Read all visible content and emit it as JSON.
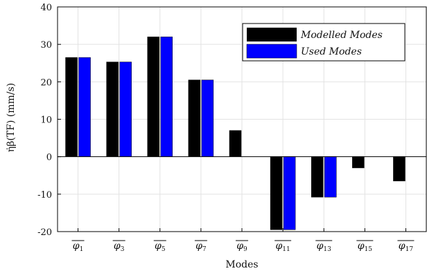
{
  "chart_data": {
    "type": "bar",
    "ylabel": "η̇β(TF) (mm/s)",
    "xlabel": "Modes",
    "ylim": [
      -20,
      40
    ],
    "yticks": [
      -20,
      -10,
      0,
      10,
      20,
      30,
      40
    ],
    "grid": true,
    "legend_position": "top-right",
    "categories": [
      {
        "sym": "φ",
        "sub": "1"
      },
      {
        "sym": "φ",
        "sub": "3"
      },
      {
        "sym": "φ",
        "sub": "5"
      },
      {
        "sym": "φ",
        "sub": "7"
      },
      {
        "sym": "φ",
        "sub": "9"
      },
      {
        "sym": "φ",
        "sub": "11"
      },
      {
        "sym": "φ",
        "sub": "13"
      },
      {
        "sym": "φ",
        "sub": "15"
      },
      {
        "sym": "φ",
        "sub": "17"
      }
    ],
    "series": [
      {
        "name": "Modelled Modes",
        "color": "#000000",
        "values": [
          26.5,
          25.3,
          32,
          20.5,
          7,
          -19.5,
          -10.8,
          -3,
          -6.5
        ]
      },
      {
        "name": "Used Modes",
        "color": "#0000ff",
        "values": [
          26.5,
          25.3,
          32,
          20.5,
          0,
          -19.5,
          -10.8,
          0,
          0
        ]
      }
    ]
  }
}
